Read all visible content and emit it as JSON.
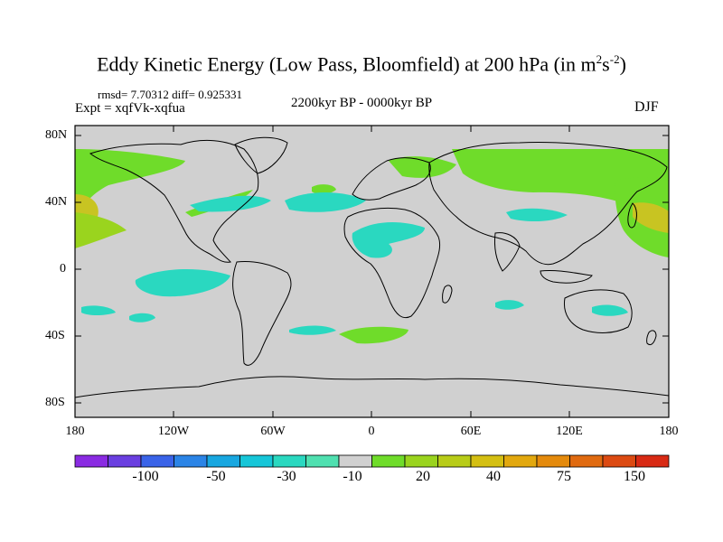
{
  "header": {
    "title_main": "Eddy Kinetic Energy (Low Pass, Bloomfield) at 200 hPa (in m",
    "title_sup1": "2",
    "title_mid": "s",
    "title_sup2": "-2",
    "title_end": ")",
    "stats": "rmsd= 7.70312 diff= 0.925331",
    "expt": "Expt = xqfVk-xqfua",
    "period": "2200kyr BP - 0000kyr BP",
    "season": "DJF"
  },
  "map": {
    "lat_labels": [
      "80N",
      "40N",
      "0",
      "40S",
      "80S"
    ],
    "lon_labels": [
      "180",
      "120W",
      "60W",
      "0",
      "60E",
      "120E",
      "180"
    ]
  },
  "colorbar": {
    "colors": [
      "#8a2be2",
      "#6a3fe0",
      "#3a63e8",
      "#2b84e6",
      "#18a7e0",
      "#16c6d8",
      "#2ad8c0",
      "#4fe0b0",
      "#d0d0d0",
      "#6fdc2a",
      "#9ad41e",
      "#b8cc18",
      "#d4bf12",
      "#e2a80e",
      "#e48a0c",
      "#e06a10",
      "#dc4a12",
      "#d82a14"
    ],
    "labels": [
      "-100",
      "-50",
      "-30",
      "-10",
      "20",
      "40",
      "75",
      "150"
    ]
  },
  "colors": {
    "land_bg": "#d0d0d0",
    "pos_green": "#6fdc2a",
    "pos_lightgreen": "#9ad41e",
    "pos_olive": "#c8c422",
    "neg_cyan": "#2ad8c0"
  }
}
